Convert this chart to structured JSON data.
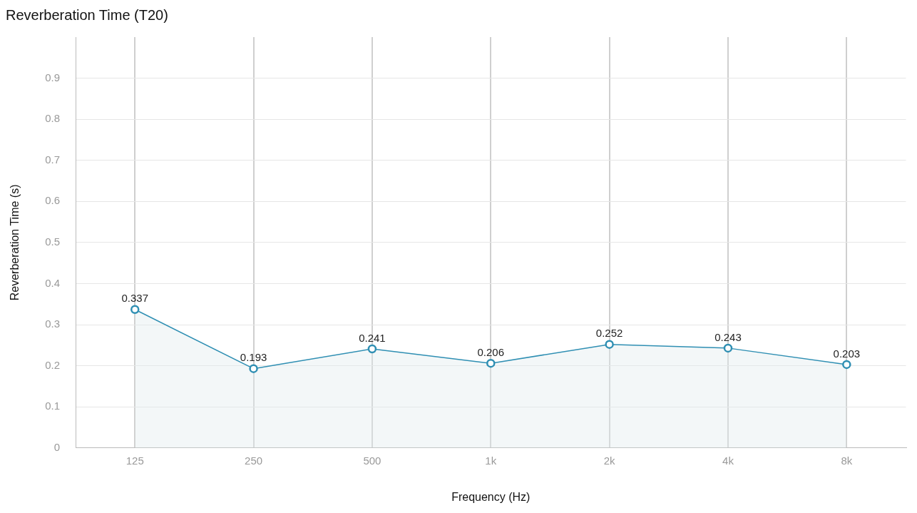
{
  "chart_data": {
    "type": "area",
    "title": "Reverberation Time (T20)",
    "xlabel": "Frequency (Hz)",
    "ylabel": "Reverberation Time (s)",
    "categories": [
      "125",
      "250",
      "500",
      "1k",
      "2k",
      "4k",
      "8k"
    ],
    "series": [
      {
        "color": "#2f8fb3",
        "values": [
          0.337,
          0.193,
          0.241,
          0.206,
          0.252,
          0.243,
          0.203
        ]
      }
    ],
    "ylim": [
      0,
      1
    ],
    "yticks": [
      0,
      0.1,
      0.2,
      0.3,
      0.4,
      0.5,
      0.6,
      0.7,
      0.8,
      0.9
    ],
    "grid": true,
    "data_labels": true,
    "marker": "circle",
    "legend": false
  }
}
